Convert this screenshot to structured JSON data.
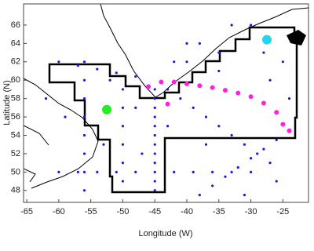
{
  "chart_data": {
    "type": "scatter",
    "xlabel": "Longitude (W)",
    "ylabel": "Latitude (N)",
    "xlim": [
      -65.5,
      -21
    ],
    "ylim": [
      46.7,
      68.3
    ],
    "xticks": [
      -65,
      -60,
      -55,
      -50,
      -45,
      -40,
      -35,
      -30,
      -25
    ],
    "yticks": [
      48,
      50,
      52,
      54,
      56,
      58,
      60,
      62,
      64,
      66
    ],
    "series": [
      {
        "color": "#1a1adc",
        "size": 1.6,
        "x": [
          -45,
          -45,
          -45,
          -45,
          -45,
          -45,
          -45,
          -45,
          -45,
          -45,
          -45,
          -45,
          -43,
          -41,
          -39,
          -37,
          -35,
          -33,
          -31,
          -29,
          -27,
          -56,
          -56,
          -56,
          -56,
          -56,
          -56,
          -56,
          -56,
          -60,
          -57,
          -54,
          -51,
          -48,
          -42,
          -39,
          -36,
          -33,
          -30,
          -60,
          -57,
          -54,
          -51,
          -48,
          -30,
          -35,
          -25,
          -38,
          -33,
          -27,
          -40,
          -50,
          -50,
          -50,
          -50,
          -50,
          -50,
          -38,
          -36,
          -34,
          -32,
          -30,
          -28,
          -26,
          -24,
          -62,
          -59,
          -53,
          -47,
          -42,
          -40,
          -35,
          -28,
          -24,
          -26,
          -31,
          -37,
          -43,
          -48,
          -52
        ],
        "values": [
          48,
          49,
          50,
          51,
          52,
          53,
          54,
          55,
          56,
          57,
          58,
          59,
          59,
          58,
          57,
          56,
          55,
          54,
          53,
          52,
          51,
          48,
          50,
          52,
          54,
          56,
          58,
          60,
          62,
          50,
          50,
          50,
          50,
          50,
          50,
          50,
          50,
          50,
          50,
          62,
          61.6,
          61.2,
          60.8,
          60.4,
          66,
          63,
          62,
          64,
          66,
          60,
          62,
          49,
          51,
          53,
          55,
          57,
          59,
          47.5,
          48.5,
          49.5,
          50.5,
          51.5,
          52.5,
          53.5,
          54.5,
          58,
          56,
          53,
          52,
          62,
          64,
          61,
          63,
          58,
          49,
          47.5,
          53,
          55,
          57,
          60
        ]
      },
      {
        "color": "#ff1fe0",
        "size": 3,
        "x": [
          -46,
          -44,
          -42,
          -40,
          -38,
          -36,
          -34,
          -32,
          -30,
          -28,
          -26,
          -25,
          -24,
          -43
        ],
        "values": [
          59.3,
          59.8,
          59.8,
          59.6,
          59.4,
          59.2,
          58.9,
          58.6,
          58.2,
          57.5,
          56.5,
          55.2,
          54.5,
          57.4
        ]
      },
      {
        "color": "#22ee22",
        "size": 6,
        "x": [
          -52.5
        ],
        "values": [
          56.8
        ]
      },
      {
        "color": "#1fd6f0",
        "size": 6,
        "x": [
          -27.5
        ],
        "values": [
          64.4
        ]
      }
    ]
  }
}
